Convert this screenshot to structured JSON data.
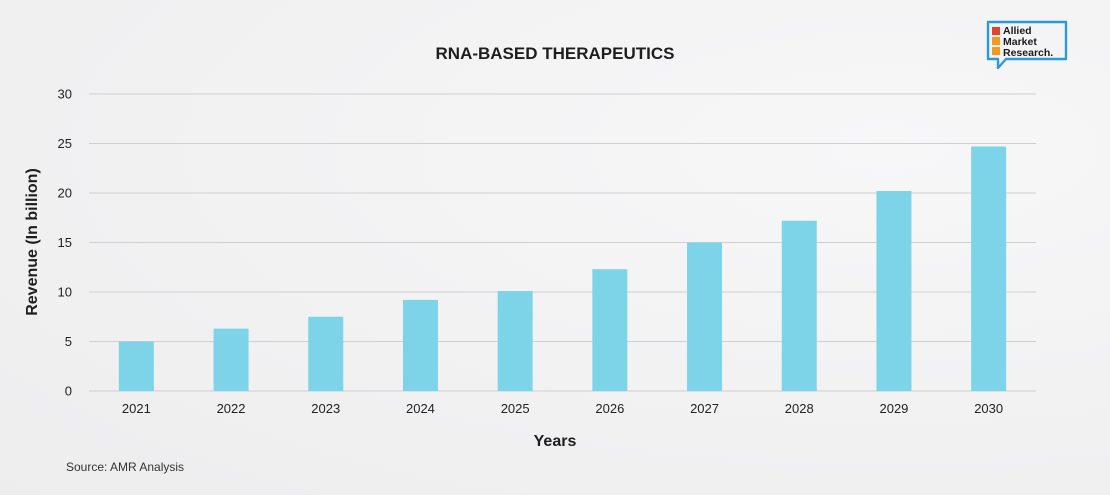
{
  "chart_data": {
    "type": "bar",
    "title": "RNA-BASED THERAPEUTICS",
    "xlabel": "Years",
    "ylabel": "Revenue (In billion)",
    "categories": [
      "2021",
      "2022",
      "2023",
      "2024",
      "2025",
      "2026",
      "2027",
      "2028",
      "2029",
      "2030"
    ],
    "values": [
      5.0,
      6.3,
      7.5,
      9.2,
      10.1,
      12.3,
      15.0,
      17.2,
      20.2,
      24.7
    ],
    "ylim": [
      0,
      30
    ],
    "yticks": [
      0,
      5,
      10,
      15,
      20,
      25,
      30
    ],
    "grid": true,
    "bar_color": "#7dd3e8",
    "legend": "none"
  },
  "source": "Source: AMR Analysis",
  "logo": {
    "lines": [
      "Allied",
      "Market",
      "Research."
    ],
    "colors": {
      "orange": "#f39a1e",
      "red": "#e2432a",
      "blue": "#2b9ad8"
    }
  }
}
